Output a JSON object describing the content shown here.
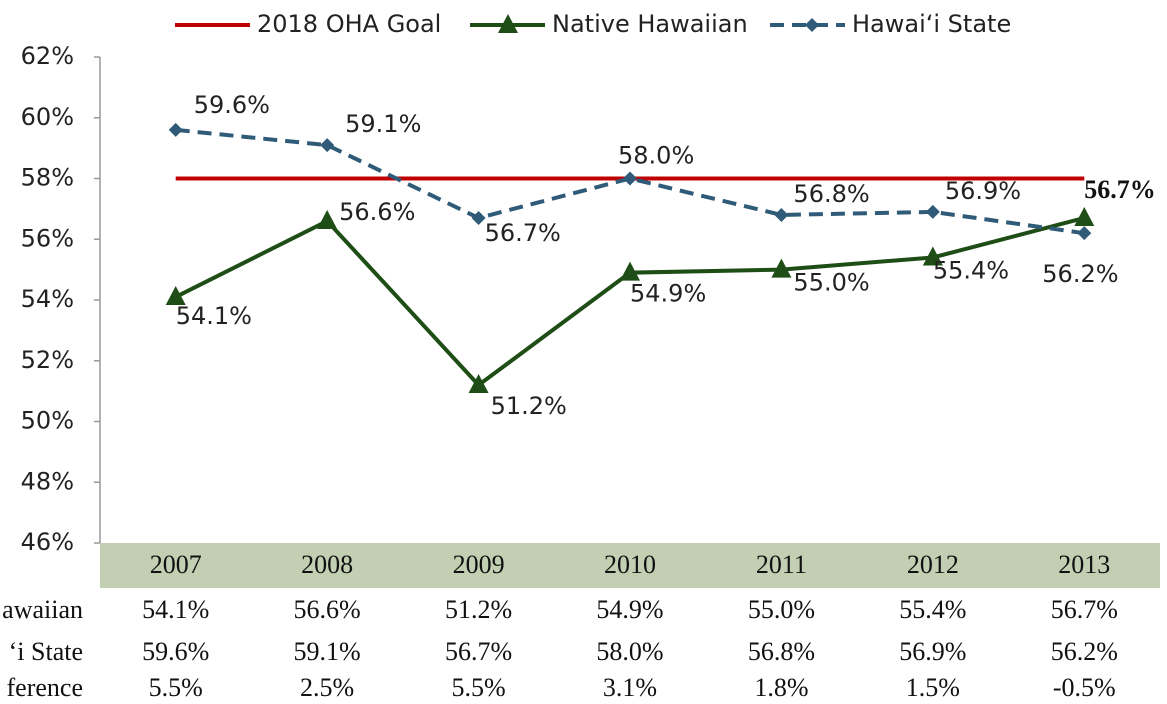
{
  "chart_data": {
    "type": "line",
    "categories": [
      "2007",
      "2008",
      "2009",
      "2010",
      "2011",
      "2012",
      "2013"
    ],
    "series": [
      {
        "name": "2018 OHA Goal",
        "color": "#c00000",
        "values": [
          58,
          58,
          58,
          58,
          58,
          58,
          58
        ]
      },
      {
        "name": "Native Hawaiian",
        "color": "#1e4d16",
        "marker": "triangle",
        "values": [
          54.1,
          56.6,
          51.2,
          54.9,
          55.0,
          55.4,
          56.7
        ],
        "value_labels": [
          "54.1%",
          "56.6%",
          "51.2%",
          "54.9%",
          "55.0%",
          "55.4%",
          "56.7%"
        ]
      },
      {
        "name": "Hawai‘i State",
        "color": "#2f5b78",
        "marker": "diamond",
        "dashed": true,
        "values": [
          59.6,
          59.1,
          56.7,
          58.0,
          56.8,
          56.9,
          56.2
        ],
        "value_labels": [
          "59.6%",
          "59.1%",
          "56.7%",
          "58.0%",
          "56.8%",
          "56.9%",
          "56.2%"
        ]
      }
    ],
    "ylim": [
      46,
      62
    ],
    "yticks": [
      {
        "value": 46,
        "label": "46%"
      },
      {
        "value": 48,
        "label": "48%"
      },
      {
        "value": 50,
        "label": "50%"
      },
      {
        "value": 52,
        "label": "52%"
      },
      {
        "value": 54,
        "label": "54%"
      },
      {
        "value": 56,
        "label": "56%"
      },
      {
        "value": 58,
        "label": "58%"
      },
      {
        "value": 60,
        "label": "60%"
      },
      {
        "value": 62,
        "label": "62%"
      }
    ],
    "legend": "top",
    "table": {
      "rows": [
        {
          "label": "awaiian",
          "cells": [
            "54.1%",
            "56.6%",
            "51.2%",
            "54.9%",
            "55.0%",
            "55.4%",
            "56.7%"
          ]
        },
        {
          "label": "‘i State",
          "cells": [
            "59.6%",
            "59.1%",
            "56.7%",
            "58.0%",
            "56.8%",
            "56.9%",
            "56.2%"
          ]
        },
        {
          "label": "ference",
          "cells": [
            "5.5%",
            "2.5%",
            "5.5%",
            "3.1%",
            "1.8%",
            "1.5%",
            "-0.5%"
          ]
        }
      ]
    }
  }
}
